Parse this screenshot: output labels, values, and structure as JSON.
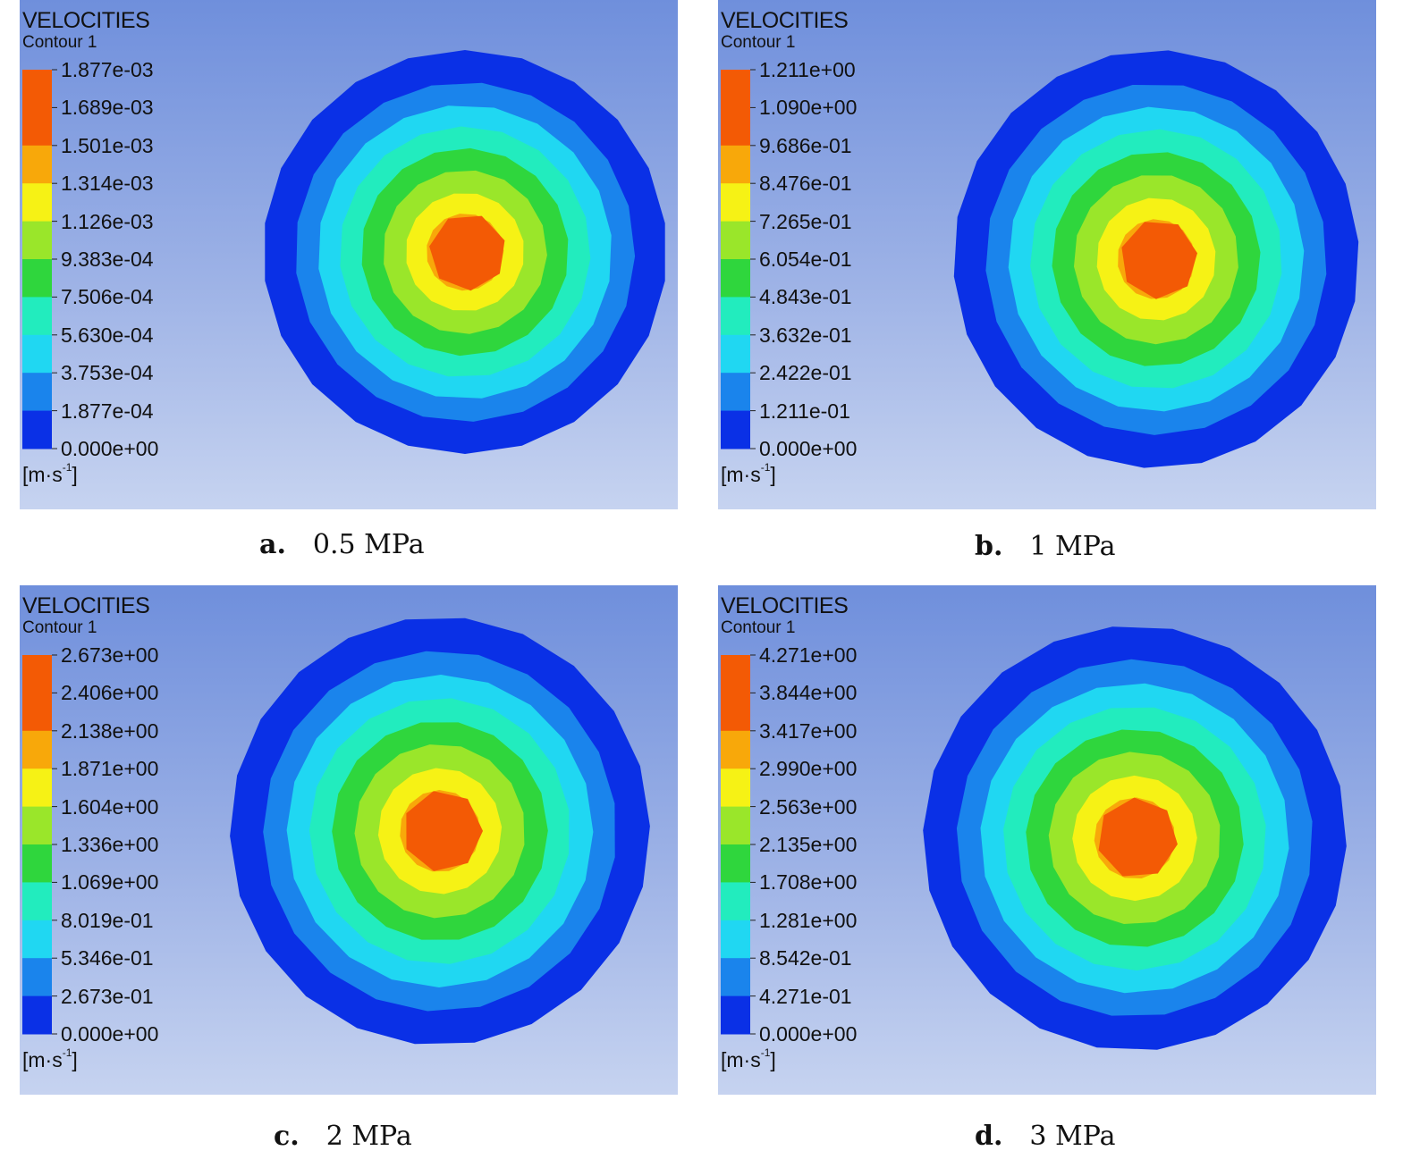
{
  "colors": [
    "#0a30e6",
    "#1a84ec",
    "#20d7f2",
    "#22ecbe",
    "#2fd63d",
    "#9ae62a",
    "#f6f215",
    "#f8a80a",
    "#f35a05"
  ],
  "panels": [
    {
      "title": "VELOCITIES",
      "subtitle": "Contour 1",
      "unit": "[m·s",
      "unit_exp": "-1",
      "unit_close": "]",
      "levels": [
        "1.877e-03",
        "1.689e-03",
        "1.501e-03",
        "1.314e-03",
        "1.126e-03",
        "9.383e-04",
        "7.506e-04",
        "5.630e-04",
        "3.753e-04",
        "1.877e-04",
        "0.000e+00"
      ],
      "caption_letter": "a.",
      "caption_text": "0.5 MPa"
    },
    {
      "title": "VELOCITIES",
      "subtitle": "Contour 1",
      "unit": "[m·s",
      "unit_exp": "-1",
      "unit_close": "]",
      "levels": [
        "1.211e+00",
        "1.090e+00",
        "9.686e-01",
        "8.476e-01",
        "7.265e-01",
        "6.054e-01",
        "4.843e-01",
        "3.632e-01",
        "2.422e-01",
        "1.211e-01",
        "0.000e+00"
      ],
      "caption_letter": "b.",
      "caption_text": "1 MPa"
    },
    {
      "title": "VELOCITIES",
      "subtitle": "Contour 1",
      "unit": "[m·s",
      "unit_exp": "-1",
      "unit_close": "]",
      "levels": [
        "2.673e+00",
        "2.406e+00",
        "2.138e+00",
        "1.871e+00",
        "1.604e+00",
        "1.336e+00",
        "1.069e+00",
        "8.019e-01",
        "5.346e-01",
        "2.673e-01",
        "0.000e+00"
      ],
      "caption_letter": "c.",
      "caption_text": "2 MPa"
    },
    {
      "title": "VELOCITIES",
      "subtitle": "Contour 1",
      "unit": "[m·s",
      "unit_exp": "-1",
      "unit_close": "]",
      "levels": [
        "4.271e+00",
        "3.844e+00",
        "3.417e+00",
        "2.990e+00",
        "2.563e+00",
        "2.135e+00",
        "1.708e+00",
        "1.281e+00",
        "8.542e-01",
        "4.271e-01",
        "0.000e+00"
      ],
      "caption_letter": "d.",
      "caption_text": "3 MPa"
    }
  ]
}
